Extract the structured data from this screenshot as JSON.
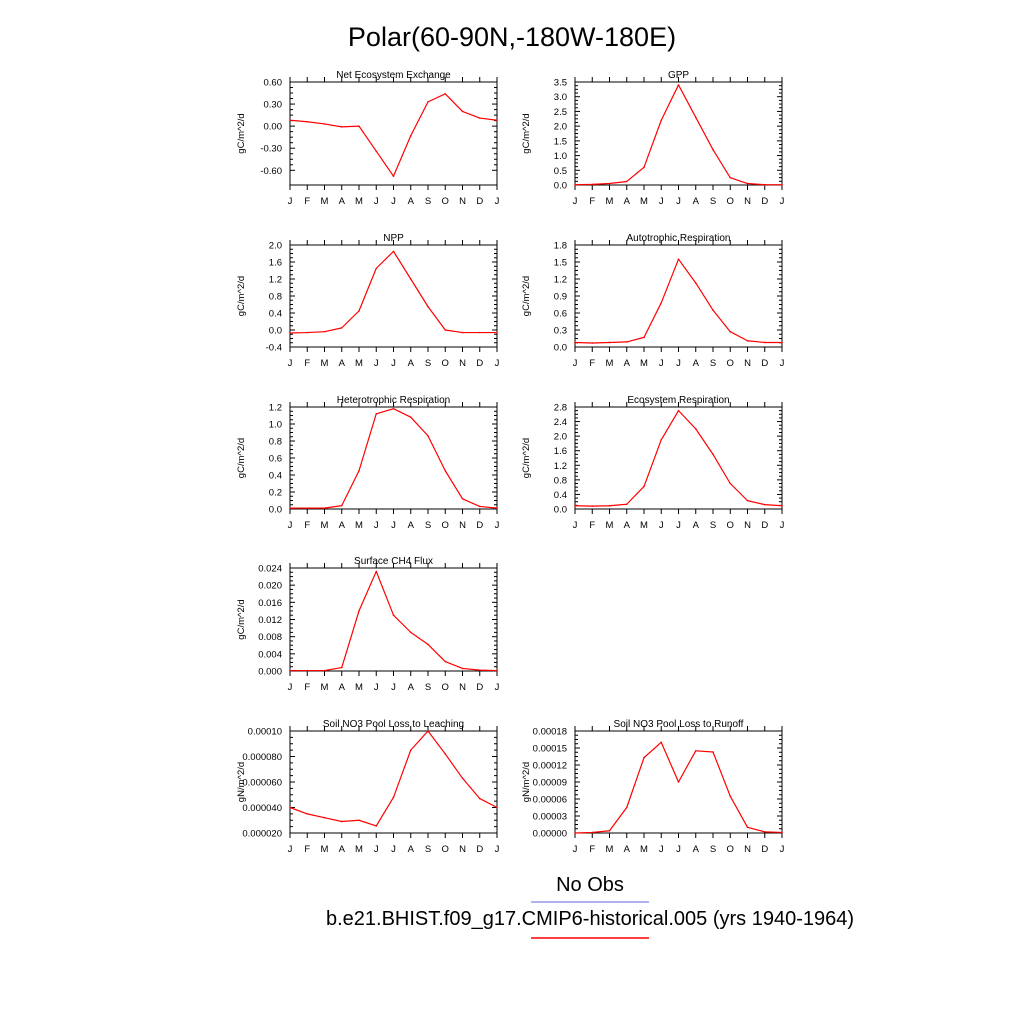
{
  "figure": {
    "title": "Polar(60-90N,-180W-180E)",
    "colors": {
      "series": "#ff0000",
      "obs": "#9999ee",
      "axis": "#000000",
      "background": "#ffffff"
    }
  },
  "legend": {
    "entries": [
      {
        "label": "No Obs",
        "color": "#9999ee"
      },
      {
        "label": "b.e21.BHIST.f09_g17.CMIP6-historical.005 (yrs 1940-1964)",
        "color": "#ff0000"
      }
    ]
  },
  "chart_data": [
    {
      "type": "line",
      "title": "Net Ecosystem Exchange",
      "ylabel": "gC/m^2/d",
      "categories": [
        "J",
        "F",
        "M",
        "A",
        "M",
        "J",
        "J",
        "A",
        "S",
        "O",
        "N",
        "D",
        "J"
      ],
      "ylim": [
        -0.8,
        0.6
      ],
      "yticks": [
        "0.60",
        "0.30",
        "0.00",
        "-0.30",
        "-0.60"
      ],
      "series": [
        {
          "values": [
            0.08,
            0.06,
            0.03,
            -0.01,
            0.0,
            -0.34,
            -0.68,
            -0.13,
            0.33,
            0.44,
            0.2,
            0.11,
            0.08
          ]
        }
      ]
    },
    {
      "type": "line",
      "title": "GPP",
      "ylabel": "gC/m^2/d",
      "categories": [
        "J",
        "F",
        "M",
        "A",
        "M",
        "J",
        "J",
        "A",
        "S",
        "O",
        "N",
        "D",
        "J"
      ],
      "ylim": [
        0,
        3.5
      ],
      "yticks": [
        "3.5",
        "3.0",
        "2.5",
        "2.0",
        "1.5",
        "1.0",
        "0.5",
        "0.0"
      ],
      "series": [
        {
          "values": [
            0.01,
            0.02,
            0.05,
            0.12,
            0.6,
            2.2,
            3.4,
            2.3,
            1.2,
            0.25,
            0.05,
            0.01,
            0.01
          ]
        }
      ]
    },
    {
      "type": "line",
      "title": "NPP",
      "ylabel": "gC/m^2/d",
      "categories": [
        "J",
        "F",
        "M",
        "A",
        "M",
        "J",
        "J",
        "A",
        "S",
        "O",
        "N",
        "D",
        "J"
      ],
      "ylim": [
        -0.4,
        2.0
      ],
      "yticks": [
        "2.0",
        "1.6",
        "1.2",
        "0.8",
        "0.4",
        "0.0",
        "-0.4"
      ],
      "series": [
        {
          "values": [
            -0.07,
            -0.06,
            -0.04,
            0.05,
            0.45,
            1.45,
            1.85,
            1.2,
            0.55,
            0.0,
            -0.06,
            -0.06,
            -0.06
          ]
        }
      ]
    },
    {
      "type": "line",
      "title": "Autotrophic Respiration",
      "ylabel": "gC/m^2/d",
      "categories": [
        "J",
        "F",
        "M",
        "A",
        "M",
        "J",
        "J",
        "A",
        "S",
        "O",
        "N",
        "D",
        "J"
      ],
      "ylim": [
        0,
        1.8
      ],
      "yticks": [
        "1.8",
        "1.5",
        "1.2",
        "0.9",
        "0.6",
        "0.3",
        "0.0"
      ],
      "series": [
        {
          "values": [
            0.08,
            0.07,
            0.08,
            0.09,
            0.17,
            0.78,
            1.55,
            1.13,
            0.65,
            0.27,
            0.11,
            0.08,
            0.08
          ]
        }
      ]
    },
    {
      "type": "line",
      "title": "Heterotrophic Respiration",
      "ylabel": "gC/m^2/d",
      "categories": [
        "J",
        "F",
        "M",
        "A",
        "M",
        "J",
        "J",
        "A",
        "S",
        "O",
        "N",
        "D",
        "J"
      ],
      "ylim": [
        0,
        1.2
      ],
      "yticks": [
        "1.2",
        "1.0",
        "0.8",
        "0.6",
        "0.4",
        "0.2",
        "0.0"
      ],
      "series": [
        {
          "values": [
            0.01,
            0.01,
            0.01,
            0.04,
            0.45,
            1.12,
            1.18,
            1.08,
            0.86,
            0.45,
            0.12,
            0.03,
            0.01
          ]
        }
      ]
    },
    {
      "type": "line",
      "title": "Ecosystem Respiration",
      "ylabel": "gC/m^2/d",
      "categories": [
        "J",
        "F",
        "M",
        "A",
        "M",
        "J",
        "J",
        "A",
        "S",
        "O",
        "N",
        "D",
        "J"
      ],
      "ylim": [
        0,
        2.8
      ],
      "yticks": [
        "2.8",
        "2.4",
        "2.0",
        "1.6",
        "1.2",
        "0.8",
        "0.4",
        "0.0"
      ],
      "series": [
        {
          "values": [
            0.09,
            0.08,
            0.09,
            0.13,
            0.62,
            1.9,
            2.7,
            2.2,
            1.5,
            0.7,
            0.23,
            0.12,
            0.09
          ]
        }
      ]
    },
    {
      "type": "line",
      "title": "Surface CH4 Flux",
      "ylabel": "gC/m^2/d",
      "categories": [
        "J",
        "F",
        "M",
        "A",
        "M",
        "J",
        "J",
        "A",
        "S",
        "O",
        "N",
        "D",
        "J"
      ],
      "ylim": [
        0,
        0.024
      ],
      "yticks": [
        "0.024",
        "0.020",
        "0.016",
        "0.012",
        "0.008",
        "0.004",
        "0.000"
      ],
      "series": [
        {
          "values": [
            0.0001,
            0.0001,
            0.0001,
            0.0008,
            0.014,
            0.0232,
            0.013,
            0.009,
            0.0062,
            0.0022,
            0.0006,
            0.0002,
            0.0001
          ]
        }
      ]
    },
    {
      "type": "line",
      "title": "Soil NO3 Pool Loss to Leaching",
      "ylabel": "gN/m^2/d",
      "categories": [
        "J",
        "F",
        "M",
        "A",
        "M",
        "J",
        "J",
        "A",
        "S",
        "O",
        "N",
        "D",
        "J"
      ],
      "ylim": [
        2e-05,
        0.0001
      ],
      "yticks": [
        "0.00010",
        "0.000080",
        "0.000060",
        "0.000040",
        "0.000020"
      ],
      "series": [
        {
          "values": [
            4e-05,
            3.5e-05,
            3.2e-05,
            2.9e-05,
            3e-05,
            2.55e-05,
            4.8e-05,
            8.5e-05,
            0.0001,
            8.2e-05,
            6.3e-05,
            4.7e-05,
            4e-05
          ]
        }
      ]
    },
    {
      "type": "line",
      "title": "Soil NO3 Pool Loss to Runoff",
      "ylabel": "gN/m^2/d",
      "categories": [
        "J",
        "F",
        "M",
        "A",
        "M",
        "J",
        "J",
        "A",
        "S",
        "O",
        "N",
        "D",
        "J"
      ],
      "ylim": [
        0,
        0.00018
      ],
      "yticks": [
        "0.00018",
        "0.00015",
        "0.00012",
        "0.00009",
        "0.00006",
        "0.00003",
        "0.00000"
      ],
      "series": [
        {
          "values": [
            0.0,
            1e-06,
            4e-06,
            4.5e-05,
            0.000133,
            0.00016,
            9e-05,
            0.000145,
            0.000143,
            6.5e-05,
            1e-05,
            2e-06,
            1e-06
          ]
        }
      ]
    }
  ]
}
